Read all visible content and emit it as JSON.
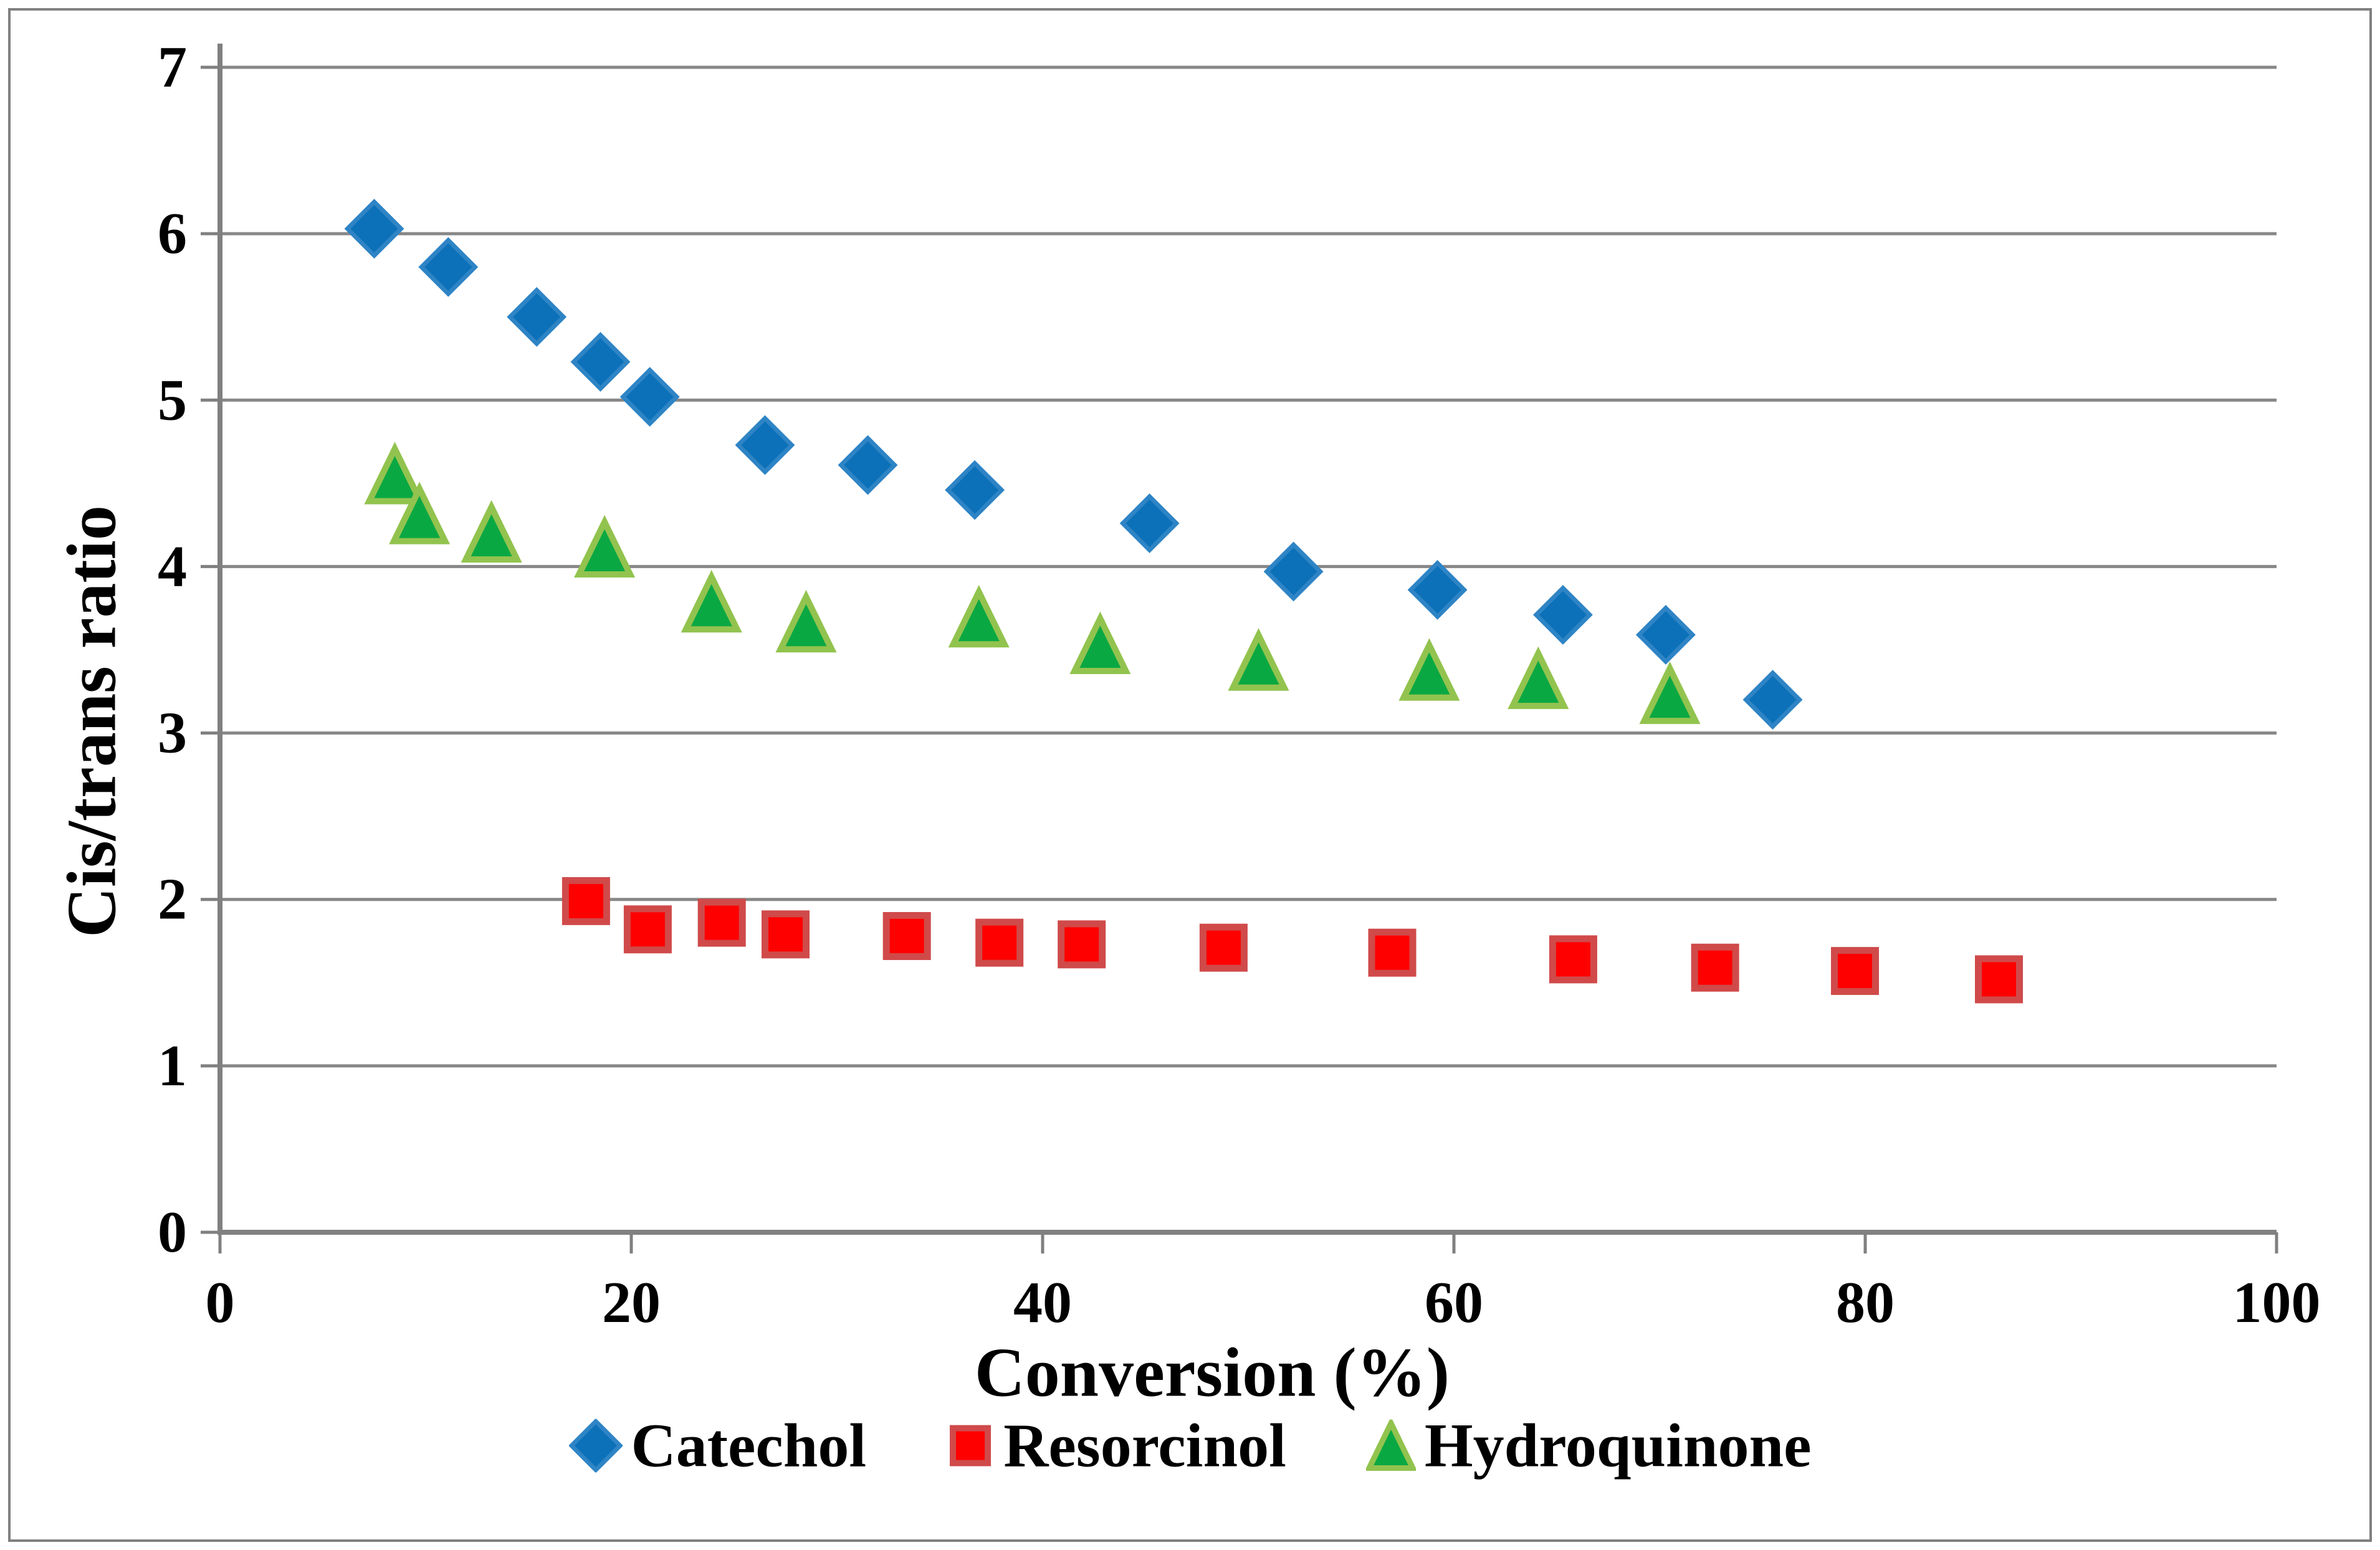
{
  "chart": {
    "y_axis": {
      "title": "Cis/trans ratio",
      "min": 0,
      "max": 7,
      "ticks": [
        0,
        1,
        2,
        3,
        4,
        5,
        6,
        7
      ]
    },
    "x_axis": {
      "title": "Conversion (%)",
      "min": 0,
      "max": 100,
      "ticks": [
        0,
        20,
        40,
        60,
        80,
        100
      ]
    },
    "legend": [
      {
        "label": "Catechol",
        "marker": "diamond"
      },
      {
        "label": "Resorcinol",
        "marker": "square"
      },
      {
        "label": "Hydroquinone",
        "marker": "triangle"
      }
    ],
    "colors": {
      "background": "#FFFFFF",
      "border": "#808080",
      "gridline": "#878787",
      "axis": "#808080",
      "text": "#000000"
    }
  },
  "chart_data": {
    "type": "scatter",
    "title": "",
    "xlabel": "Conversion (%)",
    "ylabel": "Cis/trans ratio",
    "xlim": [
      0,
      100
    ],
    "ylim": [
      0,
      7
    ],
    "grid": true,
    "legend_position": "bottom",
    "series": [
      {
        "name": "Catechol",
        "marker": "diamond",
        "fill": "#0C71B8",
        "stroke": "#2E84C5",
        "points": [
          [
            7.5,
            6.03
          ],
          [
            11.1,
            5.8
          ],
          [
            15.4,
            5.5
          ],
          [
            18.5,
            5.23
          ],
          [
            20.9,
            5.02
          ],
          [
            26.5,
            4.73
          ],
          [
            31.5,
            4.61
          ],
          [
            36.7,
            4.46
          ],
          [
            45.2,
            4.26
          ],
          [
            52.2,
            3.97
          ],
          [
            59.2,
            3.86
          ],
          [
            65.3,
            3.71
          ],
          [
            70.3,
            3.59
          ],
          [
            75.5,
            3.2
          ]
        ]
      },
      {
        "name": "Resorcinol",
        "marker": "square",
        "fill": "#FF0000",
        "stroke": "#D04A4A",
        "points": [
          [
            17.8,
            1.99
          ],
          [
            20.8,
            1.82
          ],
          [
            24.4,
            1.86
          ],
          [
            27.5,
            1.79
          ],
          [
            33.4,
            1.78
          ],
          [
            37.9,
            1.74
          ],
          [
            41.9,
            1.73
          ],
          [
            48.8,
            1.71
          ],
          [
            57.0,
            1.68
          ],
          [
            65.8,
            1.64
          ],
          [
            72.7,
            1.59
          ],
          [
            79.5,
            1.57
          ],
          [
            86.5,
            1.52
          ]
        ]
      },
      {
        "name": "Hydroquinone",
        "marker": "triangle",
        "fill": "#0AA843",
        "stroke": "#92C34E",
        "points": [
          [
            8.5,
            4.55
          ],
          [
            9.7,
            4.31
          ],
          [
            13.2,
            4.2
          ],
          [
            18.7,
            4.11
          ],
          [
            23.9,
            3.78
          ],
          [
            28.5,
            3.66
          ],
          [
            36.9,
            3.69
          ],
          [
            42.8,
            3.53
          ],
          [
            50.5,
            3.43
          ],
          [
            58.8,
            3.37
          ],
          [
            64.1,
            3.32
          ],
          [
            70.5,
            3.23
          ]
        ]
      }
    ]
  }
}
